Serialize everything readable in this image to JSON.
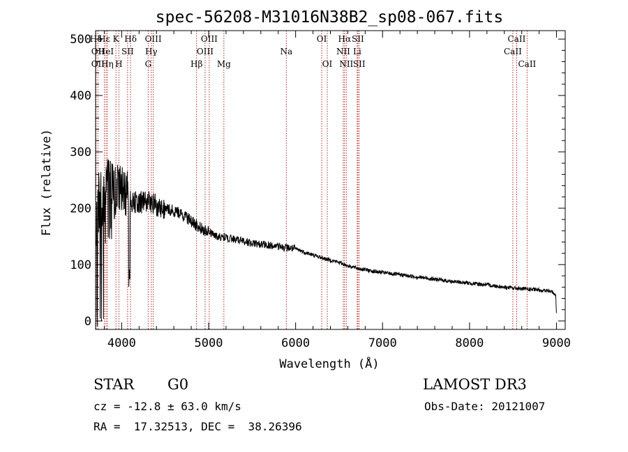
{
  "chart_data": {
    "type": "line",
    "title": "spec-56208-M31016N38B2_sp08-067.fits",
    "xlabel": "Wavelength (Å)",
    "ylabel": "Flux (relative)",
    "xlim": [
      3700,
      9100
    ],
    "ylim": [
      -15,
      515
    ],
    "x_ticks": [
      4000,
      5000,
      6000,
      7000,
      8000,
      9000
    ],
    "y_ticks": [
      0,
      100,
      200,
      300,
      400,
      500
    ],
    "line_color": "#000000",
    "marker_color": "#b22222",
    "spectrum_envelope": [
      [
        3710,
        165
      ],
      [
        3750,
        200
      ],
      [
        3800,
        205
      ],
      [
        3850,
        220
      ],
      [
        3900,
        220
      ],
      [
        3950,
        240
      ],
      [
        4000,
        230
      ],
      [
        4050,
        225
      ],
      [
        4100,
        212
      ],
      [
        4200,
        210
      ],
      [
        4300,
        212
      ],
      [
        4400,
        205
      ],
      [
        4500,
        200
      ],
      [
        4600,
        195
      ],
      [
        4700,
        188
      ],
      [
        4800,
        178
      ],
      [
        4900,
        165
      ],
      [
        5000,
        158
      ],
      [
        5100,
        150
      ],
      [
        5200,
        148
      ],
      [
        5300,
        145
      ],
      [
        5400,
        142
      ],
      [
        5500,
        138
      ],
      [
        5600,
        136
      ],
      [
        5700,
        134
      ],
      [
        5800,
        132
      ],
      [
        5900,
        130
      ],
      [
        6000,
        128
      ],
      [
        6100,
        122
      ],
      [
        6200,
        117
      ],
      [
        6300,
        112
      ],
      [
        6400,
        108
      ],
      [
        6500,
        104
      ],
      [
        6600,
        98
      ],
      [
        6700,
        94
      ],
      [
        6800,
        91
      ],
      [
        6900,
        88
      ],
      [
        7000,
        86
      ],
      [
        7200,
        82
      ],
      [
        7400,
        78
      ],
      [
        7600,
        74
      ],
      [
        7800,
        70
      ],
      [
        8000,
        67
      ],
      [
        8200,
        64
      ],
      [
        8400,
        60
      ],
      [
        8600,
        57
      ],
      [
        8800,
        55
      ],
      [
        8950,
        52
      ],
      [
        9000,
        45
      ]
    ],
    "spectral_lines": [
      {
        "label": "Hδ",
        "wavelength": 3705,
        "row": 0
      },
      {
        "label": "OII",
        "wavelength": 3727,
        "row": 1
      },
      {
        "label": "OII",
        "wavelength": 3727,
        "row": 2
      },
      {
        "label": "Hε",
        "wavelength": 3800,
        "row": 0
      },
      {
        "label": "HeI",
        "wavelength": 3820,
        "row": 1
      },
      {
        "label": "Hη",
        "wavelength": 3835,
        "row": 2
      },
      {
        "label": "K",
        "wavelength": 3934,
        "row": 0
      },
      {
        "label": "SII",
        "wavelength": 4068,
        "row": 1
      },
      {
        "label": "H",
        "wavelength": 3968,
        "row": 2
      },
      {
        "label": "Hδ",
        "wavelength": 4102,
        "row": 0
      },
      {
        "label": "OIII",
        "wavelength": 4363,
        "row": 0
      },
      {
        "label": "Hγ",
        "wavelength": 4340,
        "row": 1
      },
      {
        "label": "G",
        "wavelength": 4305,
        "row": 2
      },
      {
        "label": "OIII",
        "wavelength": 5007,
        "row": 0
      },
      {
        "label": "OIII",
        "wavelength": 4959,
        "row": 1
      },
      {
        "label": "Hβ",
        "wavelength": 4861,
        "row": 2
      },
      {
        "label": "Mg",
        "wavelength": 5175,
        "row": 2
      },
      {
        "label": "Na",
        "wavelength": 5893,
        "row": 1
      },
      {
        "label": "OI",
        "wavelength": 6300,
        "row": 0
      },
      {
        "label": "OI",
        "wavelength": 6364,
        "row": 2
      },
      {
        "label": "Hα",
        "wavelength": 6563,
        "row": 0
      },
      {
        "label": "NII",
        "wavelength": 6548,
        "row": 1
      },
      {
        "label": "NII",
        "wavelength": 6583,
        "row": 2
      },
      {
        "label": "SII",
        "wavelength": 6716,
        "row": 0
      },
      {
        "label": "Li",
        "wavelength": 6708,
        "row": 1
      },
      {
        "label": "SII",
        "wavelength": 6731,
        "row": 2
      },
      {
        "label": "CaII",
        "wavelength": 8542,
        "row": 0
      },
      {
        "label": "CaII",
        "wavelength": 8498,
        "row": 1
      },
      {
        "label": "CaII",
        "wavelength": 8662,
        "row": 2
      }
    ]
  },
  "info": {
    "object_class": "STAR",
    "subclass": "G0",
    "survey": "LAMOST DR3",
    "redshift": "cz = -12.8 ± 63.0 km/s",
    "obs_date": "Obs-Date: 20121007",
    "coordinates": "RA =  17.32513, DEC =  38.26396"
  }
}
